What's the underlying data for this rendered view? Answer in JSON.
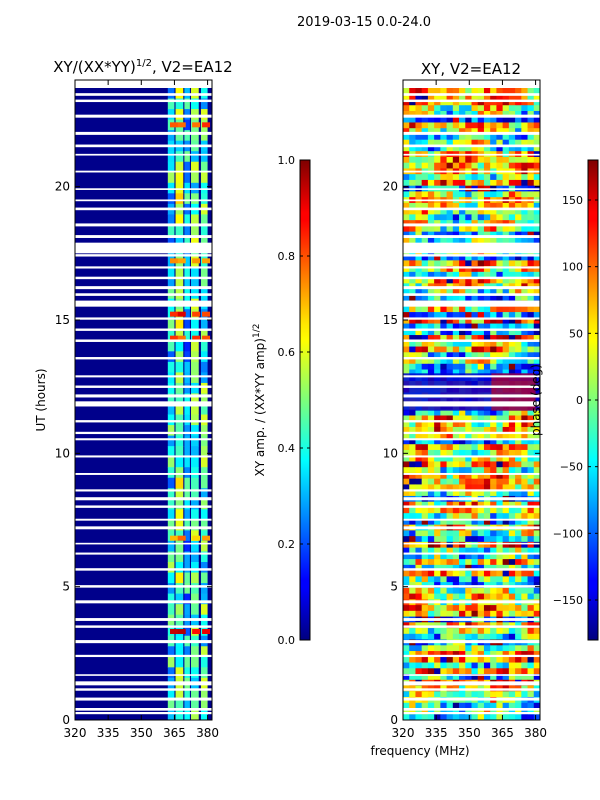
{
  "suptitle": "2019-03-15 0.0-24.0",
  "xlabel": "frequency (MHz)",
  "chart_data": [
    {
      "type": "heatmap",
      "title_main": "XY/(XX*YY)",
      "title_exp": "1/2",
      "title_tail": ", V2=EA12",
      "ylabel": "UT (hours)",
      "xlim": [
        320,
        382
      ],
      "ylim": [
        0,
        24
      ],
      "xticks": [
        "320",
        "335",
        "350",
        "365",
        "380"
      ],
      "yticks": [
        "0",
        "5",
        "10",
        "15",
        "20"
      ],
      "colorbar": {
        "label_main": "XY amp. / (XX*YY amp)",
        "label_exp": "1/2",
        "range": [
          0.0,
          1.0
        ],
        "ticks": [
          "0.0",
          "0.2",
          "0.4",
          "0.6",
          "0.8",
          "1.0"
        ]
      }
    },
    {
      "type": "heatmap",
      "title": "XY, V2=EA12",
      "xlim": [
        320,
        382
      ],
      "ylim": [
        0,
        24
      ],
      "xticks": [
        "320",
        "335",
        "350",
        "365",
        "380"
      ],
      "yticks": [
        "0",
        "5",
        "10",
        "15",
        "20"
      ],
      "colorbar": {
        "label": "phase (deg)",
        "range": [
          -180,
          180
        ],
        "ticks": [
          "150",
          "100",
          "50",
          "0",
          "−50",
          "−100",
          "−150"
        ]
      }
    }
  ]
}
